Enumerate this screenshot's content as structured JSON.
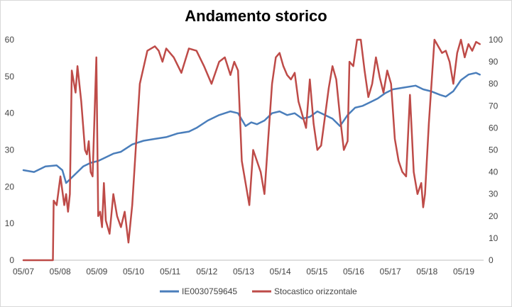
{
  "chart_data": {
    "type": "line",
    "title": "Andamento storico",
    "x_ticks": [
      "05/07",
      "05/08",
      "05/09",
      "05/10",
      "05/11",
      "05/12",
      "05/13",
      "05/14",
      "05/15",
      "05/16",
      "05/17",
      "05/18",
      "05/19"
    ],
    "y_left": {
      "ticks": [
        0,
        10,
        20,
        30,
        40,
        50,
        60
      ],
      "lim": [
        0,
        60
      ]
    },
    "y_right": {
      "ticks": [
        0,
        10,
        20,
        30,
        40,
        50,
        60,
        70,
        80,
        90,
        100
      ],
      "lim": [
        0,
        100
      ]
    },
    "grid": false,
    "legend_position": "bottom",
    "series": [
      {
        "name": "IE0030759645",
        "color": "#4a7ebb",
        "axis": "left",
        "x": [
          2007.42,
          2007.7,
          2008.0,
          2008.3,
          2008.45,
          2008.55,
          2008.7,
          2008.85,
          2009.0,
          2009.2,
          2009.4,
          2009.6,
          2009.8,
          2010.0,
          2010.3,
          2010.6,
          2010.9,
          2011.2,
          2011.5,
          2011.8,
          2012.0,
          2012.3,
          2012.6,
          2012.9,
          2013.1,
          2013.3,
          2013.45,
          2013.6,
          2013.8,
          2014.0,
          2014.2,
          2014.4,
          2014.6,
          2014.8,
          2015.0,
          2015.2,
          2015.4,
          2015.6,
          2015.8,
          2016.0,
          2016.2,
          2016.4,
          2016.6,
          2016.8,
          2017.0,
          2017.2,
          2017.5,
          2017.8,
          2018.0,
          2018.2,
          2018.45,
          2018.6,
          2018.8,
          2019.0,
          2019.2,
          2019.4,
          2019.5
        ],
        "values": [
          24.5,
          24.0,
          25.5,
          25.8,
          24.5,
          21.0,
          22.5,
          24.0,
          25.5,
          26.5,
          27.0,
          28.0,
          29.0,
          29.5,
          31.5,
          32.5,
          33.0,
          33.5,
          34.5,
          35.0,
          36.0,
          38.0,
          39.5,
          40.5,
          40.0,
          36.5,
          37.5,
          37.0,
          38.0,
          40.0,
          40.5,
          39.5,
          40.0,
          38.5,
          39.0,
          40.5,
          39.5,
          38.5,
          36.5,
          39.5,
          41.5,
          42.0,
          43.0,
          44.0,
          45.5,
          46.5,
          47.0,
          47.5,
          46.5,
          46.0,
          45.0,
          44.5,
          46.0,
          49.0,
          50.5,
          51.0,
          50.5
        ]
      },
      {
        "name": "Stocastico orizzontale",
        "color": "#be4b48",
        "axis": "right",
        "x": [
          2007.42,
          2008.2,
          2008.22,
          2008.3,
          2008.4,
          2008.5,
          2008.55,
          2008.6,
          2008.65,
          2008.7,
          2008.8,
          2008.85,
          2008.95,
          2009.05,
          2009.1,
          2009.15,
          2009.2,
          2009.25,
          2009.35,
          2009.4,
          2009.45,
          2009.5,
          2009.55,
          2009.6,
          2009.7,
          2009.8,
          2009.9,
          2010.0,
          2010.1,
          2010.2,
          2010.3,
          2010.5,
          2010.7,
          2010.9,
          2011.0,
          2011.1,
          2011.2,
          2011.4,
          2011.6,
          2011.8,
          2012.0,
          2012.2,
          2012.4,
          2012.6,
          2012.75,
          2012.9,
          2013.0,
          2013.1,
          2013.2,
          2013.3,
          2013.4,
          2013.5,
          2013.6,
          2013.7,
          2013.8,
          2013.9,
          2014.0,
          2014.1,
          2014.2,
          2014.3,
          2014.4,
          2014.5,
          2014.6,
          2014.7,
          2014.8,
          2014.9,
          2015.0,
          2015.1,
          2015.2,
          2015.3,
          2015.4,
          2015.5,
          2015.6,
          2015.7,
          2015.8,
          2015.9,
          2016.0,
          2016.05,
          2016.15,
          2016.25,
          2016.35,
          2016.45,
          2016.55,
          2016.65,
          2016.75,
          2016.85,
          2016.95,
          2017.05,
          2017.15,
          2017.25,
          2017.35,
          2017.45,
          2017.55,
          2017.65,
          2017.75,
          2017.85,
          2017.95,
          2018.0,
          2018.05,
          2018.15,
          2018.3,
          2018.5,
          2018.6,
          2018.7,
          2018.8,
          2018.9,
          2019.0,
          2019.1,
          2019.2,
          2019.3,
          2019.4,
          2019.5
        ],
        "values": [
          0,
          0,
          27,
          25,
          38,
          25,
          30,
          22,
          30,
          86,
          76,
          88,
          72,
          50,
          48,
          54,
          40,
          38,
          92,
          20,
          22,
          15,
          35,
          18,
          12,
          30,
          20,
          15,
          22,
          8,
          25,
          80,
          95,
          97,
          95,
          90,
          96,
          92,
          85,
          96,
          95,
          88,
          80,
          90,
          92,
          84,
          90,
          86,
          45,
          35,
          25,
          50,
          45,
          40,
          30,
          55,
          80,
          92,
          94,
          88,
          84,
          82,
          85,
          72,
          66,
          60,
          82,
          62,
          50,
          52,
          65,
          78,
          88,
          82,
          65,
          50,
          54,
          90,
          88,
          100,
          100,
          86,
          74,
          80,
          92,
          83,
          76,
          86,
          80,
          55,
          45,
          40,
          38,
          75,
          40,
          30,
          35,
          24,
          30,
          62,
          100,
          94,
          95,
          90,
          80,
          94,
          100,
          92,
          98,
          95,
          99,
          98
        ]
      }
    ]
  }
}
